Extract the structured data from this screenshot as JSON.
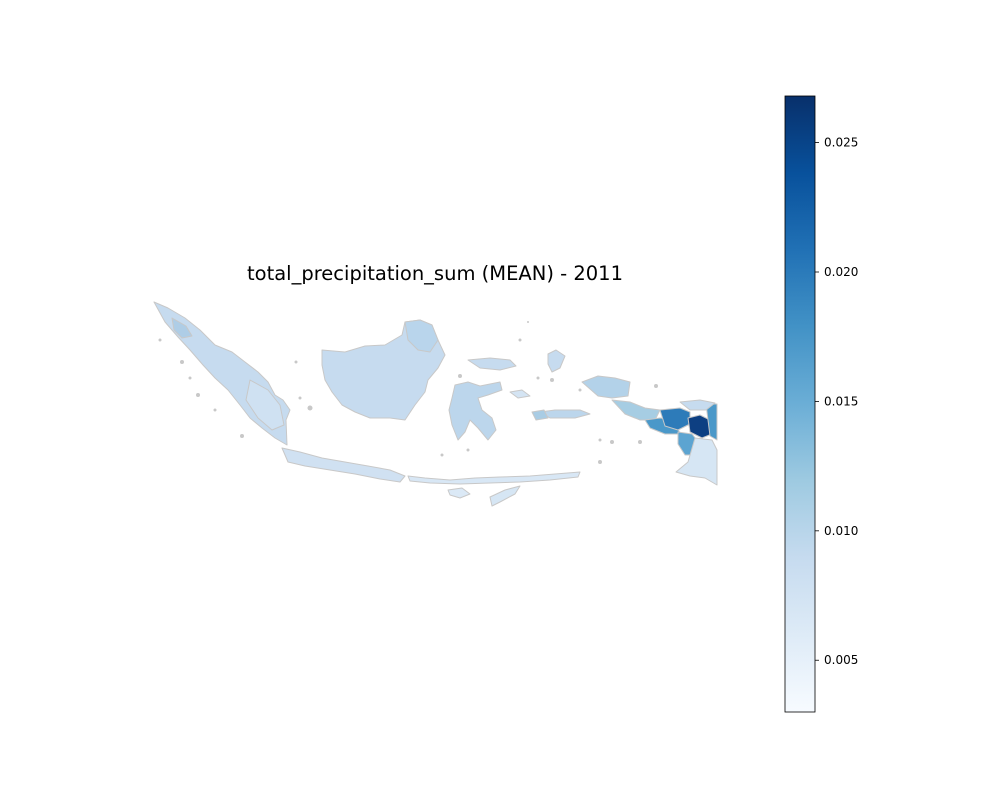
{
  "map": {
    "title": "total_precipitation_sum (MEAN) - 2011",
    "colormap": "Blues",
    "border_color": "#c8c8c8",
    "legend_placement": "right"
  },
  "colorbar": {
    "vmin": 0.003,
    "vmax": 0.0268,
    "ticks": [
      {
        "value": 0.005,
        "label": "0.005"
      },
      {
        "value": 0.01,
        "label": "0.010"
      },
      {
        "value": 0.015,
        "label": "0.015"
      },
      {
        "value": 0.02,
        "label": "0.020"
      },
      {
        "value": 0.025,
        "label": "0.025"
      }
    ],
    "colors": [
      "#f7fbff",
      "#deebf7",
      "#c6dbef",
      "#9ecae1",
      "#6baed6",
      "#4292c6",
      "#2171b5",
      "#08519c",
      "#08306b"
    ]
  }
}
